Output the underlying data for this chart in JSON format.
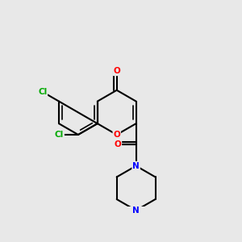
{
  "background_color": "#e8e8e8",
  "bond_color": "#000000",
  "bond_width": 1.5,
  "atom_colors": {
    "O": "#ff0000",
    "N": "#0000ff",
    "Cl": "#00aa00",
    "C": "#000000"
  },
  "font_size": 7.5,
  "fig_size": [
    3.0,
    3.0
  ],
  "dpi": 100
}
